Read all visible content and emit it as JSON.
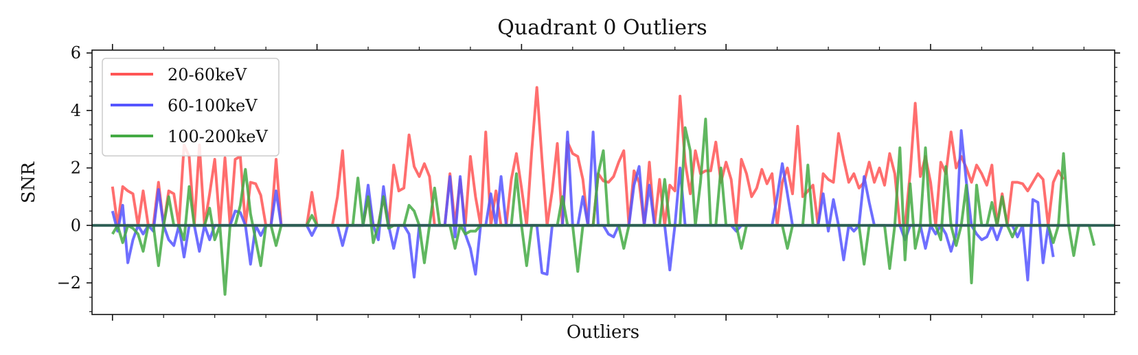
{
  "chart_data": {
    "type": "line",
    "title": "Quadrant 0 Outliers",
    "xlabel": "Outliers",
    "ylabel": "SNR",
    "ylim": [
      -3.1,
      6.1
    ],
    "xlim": [
      -4,
      196
    ],
    "yticks": [
      -2,
      0,
      2,
      4,
      6
    ],
    "yticklabels": [
      "−2",
      "0",
      "2",
      "4",
      "6"
    ],
    "legend_position": "top-left",
    "grid": false,
    "series": [
      {
        "name": "20-60keV",
        "color": "#ff5555",
        "values": [
          1.35,
          0.0,
          1.35,
          1.2,
          1.1,
          0.0,
          1.2,
          0.0,
          0.0,
          1.5,
          0.0,
          1.2,
          1.1,
          0.0,
          2.8,
          2.4,
          0.0,
          2.8,
          0.0,
          1.1,
          2.3,
          0.0,
          2.35,
          0.0,
          2.3,
          2.4,
          0.0,
          1.5,
          1.45,
          1.05,
          0.0,
          0.0,
          2.3,
          0.0,
          0.0,
          0.0,
          0.0,
          0.0,
          0.0,
          1.15,
          0.0,
          0.0,
          0.0,
          0.0,
          1.0,
          2.6,
          0.0,
          0.0,
          0.0,
          0.0,
          1.0,
          0.0,
          0.0,
          1.0,
          0.0,
          2.1,
          1.2,
          1.3,
          3.15,
          2.05,
          1.7,
          2.15,
          1.7,
          0.0,
          0.0,
          0.0,
          1.8,
          0.0,
          1.6,
          0.0,
          2.4,
          1.0,
          0.0,
          3.25,
          0.0,
          1.2,
          0.0,
          0.0,
          1.6,
          2.5,
          1.3,
          0.0,
          2.6,
          4.8,
          2.3,
          0.0,
          1.2,
          2.85,
          0.0,
          2.9,
          2.5,
          2.4,
          1.6,
          0.0,
          0.0,
          1.8,
          1.55,
          1.5,
          1.7,
          2.2,
          2.6,
          0.0,
          1.9,
          1.5,
          0.0,
          2.2,
          0.0,
          1.6,
          0.0,
          1.4,
          1.2,
          4.5,
          2.2,
          1.1,
          2.6,
          1.8,
          1.9,
          1.9,
          2.9,
          1.5,
          2.2,
          1.6,
          0.0,
          2.3,
          1.8,
          1.0,
          1.3,
          1.95,
          1.45,
          1.8,
          0.0,
          1.5,
          2.0,
          1.1,
          3.45,
          1.0,
          1.2,
          1.4,
          0.0,
          1.8,
          1.6,
          1.5,
          3.2,
          2.3,
          1.5,
          1.8,
          1.3,
          1.5,
          2.2,
          1.5,
          2.0,
          1.4,
          2.5,
          1.8,
          0.0,
          0.0,
          1.8,
          4.25,
          1.7,
          2.4,
          1.5,
          0.0,
          2.2,
          1.8,
          3.25,
          2.0,
          2.4,
          2.0,
          1.5,
          2.1,
          1.8,
          1.4,
          2.1,
          0.0,
          1.1,
          0.0,
          1.5,
          1.5,
          1.45,
          1.2,
          1.5,
          1.8,
          1.6,
          0.0,
          1.5,
          1.9,
          1.6
        ]
      },
      {
        "name": "60-100keV",
        "color": "#5555ff",
        "values": [
          0.5,
          -0.2,
          0.7,
          -1.3,
          -0.5,
          0.0,
          -0.3,
          0.0,
          -0.2,
          1.25,
          0.0,
          -0.5,
          -0.7,
          0.0,
          -1.1,
          0.0,
          0.0,
          -0.9,
          0.0,
          -0.5,
          0.0,
          0.0,
          0.0,
          0.0,
          0.5,
          0.45,
          0.0,
          -1.35,
          0.0,
          -0.35,
          0.0,
          0.0,
          1.2,
          0.0,
          0.0,
          0.0,
          0.0,
          0.0,
          0.0,
          -0.35,
          0.0,
          0.0,
          0.0,
          0.0,
          0.0,
          -0.7,
          0.0,
          0.0,
          0.0,
          0.0,
          1.4,
          0.0,
          -0.5,
          1.35,
          0.0,
          -0.8,
          0.0,
          0.0,
          -0.3,
          -1.8,
          0.0,
          0.0,
          0.0,
          0.0,
          0.0,
          0.0,
          1.7,
          -0.4,
          1.7,
          -0.3,
          -0.8,
          -1.7,
          0.0,
          0.0,
          1.1,
          0.0,
          1.7,
          0.0,
          0.0,
          0.0,
          0.0,
          0.0,
          0.0,
          0.0,
          -1.65,
          -1.7,
          0.0,
          0.0,
          0.0,
          3.25,
          0.0,
          0.0,
          1.0,
          0.0,
          3.25,
          0.0,
          0.0,
          -0.3,
          -0.4,
          0.0,
          0.0,
          0.0,
          1.4,
          2.05,
          0.0,
          1.4,
          0.0,
          0.0,
          0.0,
          -1.55,
          0.0,
          2.0,
          0.0,
          0.0,
          0.0,
          0.0,
          0.0,
          0.0,
          0.0,
          0.0,
          0.0,
          0.0,
          -0.2,
          0.0,
          0.0,
          0.0,
          0.0,
          0.0,
          0.0,
          0.0,
          1.0,
          2.15,
          1.1,
          0.0,
          0.0,
          0.0,
          0.0,
          0.0,
          0.0,
          1.1,
          -0.2,
          0.9,
          0.0,
          -1.2,
          0.0,
          -0.2,
          0.0,
          1.7,
          0.8,
          0.0,
          0.0,
          0.0,
          0.0,
          0.0,
          0.0,
          -0.5,
          0.0,
          0.0,
          0.0,
          -0.8,
          0.0,
          -0.3,
          0.0,
          -0.3,
          -0.9,
          -0.3,
          3.3,
          1.5,
          0.0,
          -0.3,
          -0.5,
          -0.4,
          0.0,
          -0.5,
          0.0,
          0.0,
          0.0,
          -0.4,
          0.0,
          -1.9,
          0.9,
          0.8,
          -1.3,
          0.0,
          -1.1
        ]
      },
      {
        "name": "100-200keV",
        "color": "#44aa44",
        "values": [
          -0.3,
          0.0,
          -0.6,
          0.0,
          -0.1,
          -0.3,
          -0.9,
          0.0,
          0.0,
          -1.4,
          0.0,
          1.0,
          0.0,
          0.0,
          -0.5,
          1.35,
          0.0,
          0.0,
          0.0,
          0.6,
          -0.5,
          0.0,
          -2.4,
          0.0,
          0.0,
          0.7,
          1.95,
          0.4,
          -0.5,
          -1.4,
          0.0,
          0.0,
          -0.7,
          0.0,
          0.0,
          0.0,
          0.0,
          0.0,
          0.0,
          0.35,
          0.0,
          0.0,
          0.0,
          0.0,
          0.0,
          0.0,
          0.0,
          0.0,
          1.65,
          0.0,
          1.0,
          -0.6,
          0.0,
          1.0,
          -0.1,
          0.0,
          0.0,
          0.0,
          0.7,
          0.5,
          0.0,
          -1.3,
          0.0,
          1.3,
          0.0,
          0.0,
          0.0,
          -0.8,
          0.0,
          -0.3,
          -0.2,
          -0.2,
          0.0,
          0.0,
          0.0,
          0.0,
          0.0,
          0.0,
          0.0,
          1.8,
          0.0,
          -1.4,
          0.0,
          0.0,
          0.0,
          0.0,
          0.0,
          0.0,
          1.0,
          0.0,
          0.0,
          -1.6,
          0.0,
          0.0,
          0.0,
          1.8,
          2.6,
          0.0,
          0.0,
          0.0,
          -0.8,
          0.0,
          0.0,
          0.0,
          0.0,
          0.0,
          0.0,
          0.0,
          1.6,
          0.0,
          0.0,
          0.0,
          3.4,
          2.6,
          0.0,
          1.5,
          3.7,
          0.0,
          0.0,
          2.0,
          0.0,
          0.0,
          0.0,
          -0.8,
          0.0,
          0.0,
          0.0,
          0.0,
          0.0,
          0.0,
          0.0,
          0.0,
          -0.8,
          0.0,
          0.0,
          0.0,
          2.1,
          0.0,
          0.0,
          0.0,
          0.0,
          0.0,
          0.0,
          0.0,
          0.0,
          0.0,
          0.0,
          -1.35,
          0.0,
          0.0,
          0.0,
          0.0,
          -1.5,
          0.0,
          2.7,
          -1.2,
          1.45,
          -0.8,
          0.0,
          2.7,
          0.0,
          0.0,
          -0.5,
          2.05,
          0.0,
          -0.7,
          0.0,
          1.4,
          -2.0,
          1.4,
          0.0,
          0.0,
          0.8,
          0.0,
          1.0,
          0.0,
          -0.4,
          0.0,
          0.0,
          0.0,
          0.0,
          0.0,
          0.0,
          0.0,
          -0.6,
          0.0,
          2.5,
          0.0,
          -1.05,
          0.0,
          0.0,
          0.0,
          -0.7
        ]
      }
    ]
  }
}
